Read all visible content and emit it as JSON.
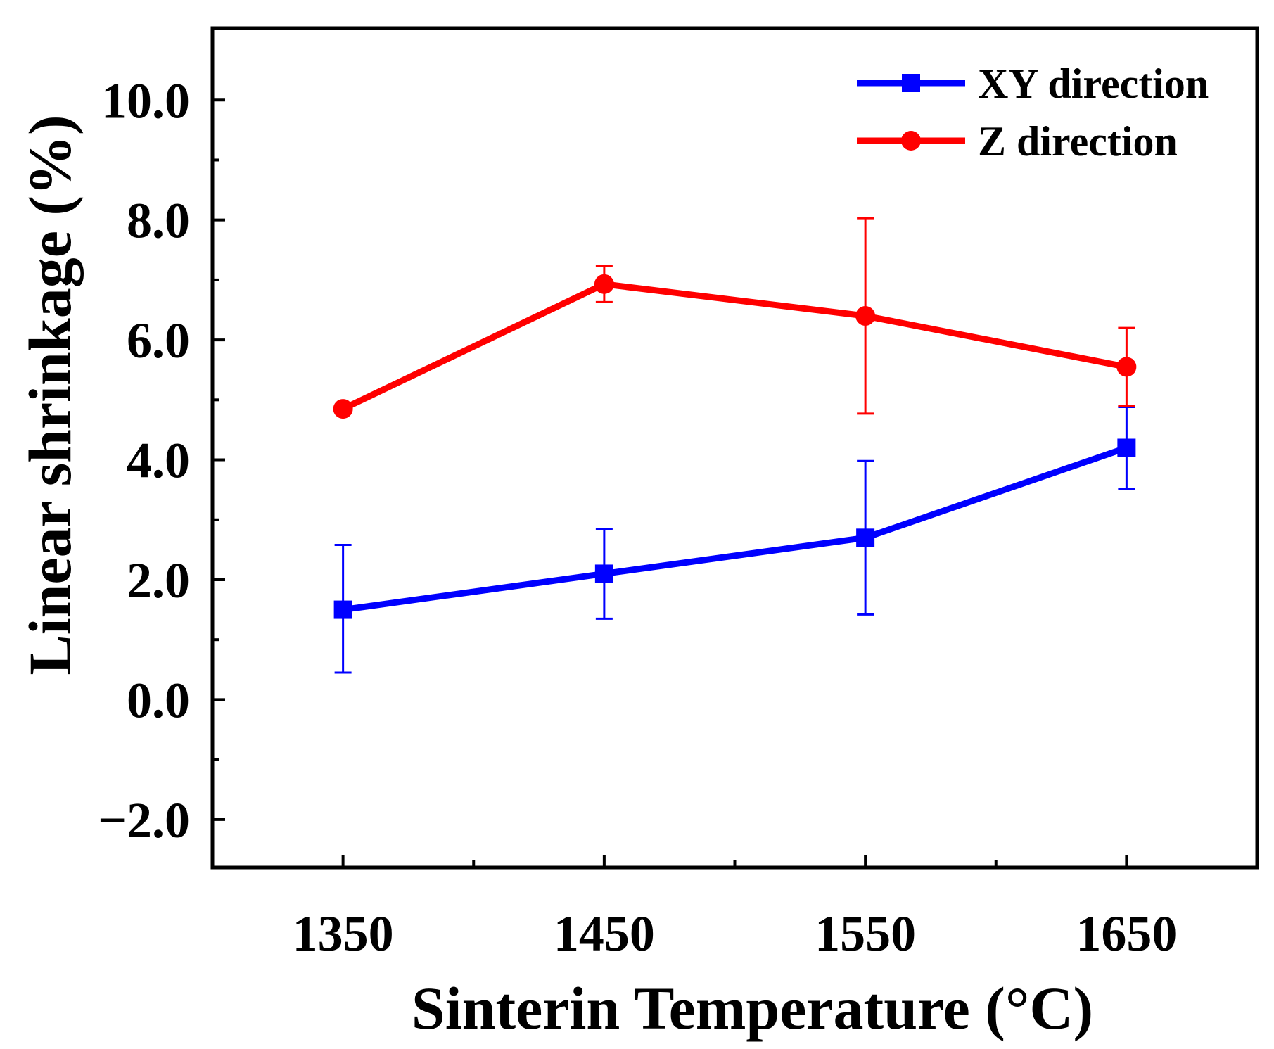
{
  "chart_data": {
    "type": "line",
    "title": "",
    "xlabel": "Sinterin Temperature (°C)",
    "ylabel": "Linear shrinkage (%)",
    "xlim": [
      1300,
      1700
    ],
    "ylim": [
      -2.8,
      11.2
    ],
    "x_ticks": [
      1350,
      1450,
      1550,
      1650
    ],
    "x_tick_labels": [
      "1350",
      "1450",
      "1550",
      "1650"
    ],
    "x_minor_ticks": [
      1400,
      1500,
      1600
    ],
    "y_ticks": [
      -2.0,
      0.0,
      2.0,
      4.0,
      6.0,
      8.0,
      10.0
    ],
    "y_tick_labels": [
      "−2.0",
      "0.0",
      "2.0",
      "4.0",
      "6.0",
      "8.0",
      "10.0"
    ],
    "y_minor_ticks": [
      -1.0,
      1.0,
      3.0,
      5.0,
      7.0,
      9.0
    ],
    "grid": false,
    "legend_position": "top-right",
    "series": [
      {
        "name": "XY direction",
        "color": "#0000ff",
        "marker": "square",
        "x": [
          1350,
          1450,
          1550,
          1650
        ],
        "y": [
          1.5,
          2.1,
          2.7,
          4.2
        ],
        "err_low": [
          1.05,
          0.75,
          1.28,
          0.68
        ],
        "err_high": [
          1.08,
          0.75,
          1.28,
          0.68
        ]
      },
      {
        "name": "Z direction",
        "color": "#ff0000",
        "marker": "circle",
        "x": [
          1350,
          1450,
          1550,
          1650
        ],
        "y": [
          4.85,
          6.93,
          6.4,
          5.55
        ],
        "err_low": [
          0,
          0.3,
          1.63,
          0.65
        ],
        "err_high": [
          0,
          0.3,
          1.63,
          0.65
        ]
      }
    ]
  }
}
